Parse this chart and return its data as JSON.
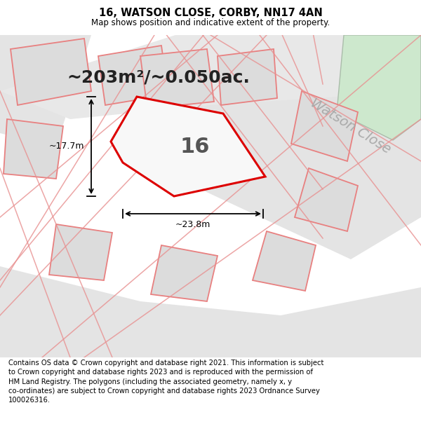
{
  "title": "16, WATSON CLOSE, CORBY, NN17 4AN",
  "subtitle": "Map shows position and indicative extent of the property.",
  "footer": "Contains OS data © Crown copyright and database right 2021. This information is subject\nto Crown copyright and database rights 2023 and is reproduced with the permission of\nHM Land Registry. The polygons (including the associated geometry, namely x, y\nco-ordinates) are subject to Crown copyright and database rights 2023 Ordnance Survey\n100026316.",
  "area_text": "~203m²/~0.050ac.",
  "property_number": "16",
  "dim_width": "~23.8m",
  "dim_height": "~17.7m",
  "street_label": "Watson Close",
  "map_bg": "#f0f0f0",
  "white_bg": "#ffffff",
  "property_fill": "#f8f8f8",
  "property_outline": "#dd0000",
  "neighbor_fill": "#dcdcdc",
  "neighbor_outline": "#e88080",
  "road_fill": "#e8e8e8",
  "green_fill": "#cde8cd",
  "green_outline": "#aabcaa",
  "road_line_color": "#e89090",
  "title_fontsize": 10.5,
  "subtitle_fontsize": 8.5,
  "footer_fontsize": 7.2,
  "area_fontsize": 18,
  "number_fontsize": 22,
  "dim_fontsize": 9,
  "street_fontsize": 14
}
